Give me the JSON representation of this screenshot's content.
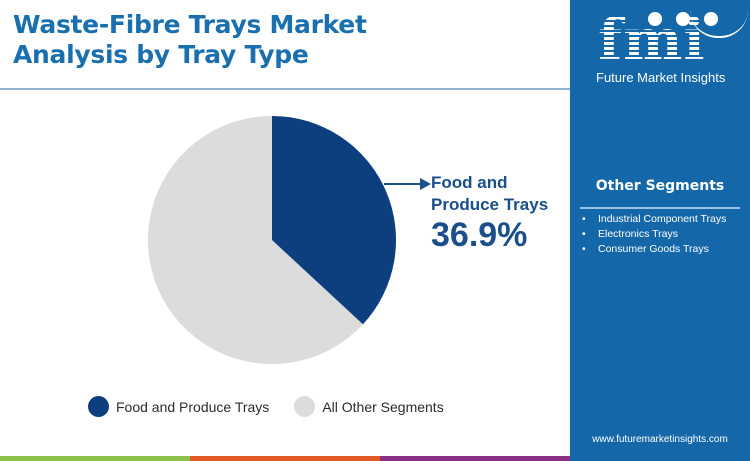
{
  "title": {
    "line1": "Waste-Fibre Trays Market",
    "line2": "Analysis by Tray Type"
  },
  "brand": {
    "logo_letters": "fmi",
    "name": "Future Market Insights",
    "website": "www.futuremarketinsights.com",
    "colors": {
      "sidebar": "#1467a8",
      "title": "#1a6faf",
      "strip": [
        "#8dc04a",
        "#e35a27",
        "#8b2f84"
      ]
    }
  },
  "callout": {
    "label_line1": "Food and",
    "label_line2": "Produce Trays",
    "value": "36.9%"
  },
  "other_segments": {
    "title": "Other Segments",
    "items": [
      "Industrial Component Trays",
      "Electronics Trays",
      "Consumer Goods Trays"
    ]
  },
  "legend": [
    {
      "label": "Food and Produce Trays",
      "color": "#0d3f7e"
    },
    {
      "label": "All Other Segments",
      "color": "#dcdcdc"
    }
  ],
  "chart_data": {
    "type": "pie",
    "title": "Waste-Fibre Trays Market Analysis by Tray Type",
    "categories": [
      "Food and Produce Trays",
      "All Other Segments"
    ],
    "values": [
      36.9,
      63.1
    ],
    "colors": [
      "#0d3f7e",
      "#dcdcdc"
    ],
    "start_angle": "12 o'clock, clockwise",
    "annotations": [
      {
        "target": "Food and Produce Trays",
        "text": "36.9%"
      }
    ],
    "legend_position": "bottom"
  }
}
